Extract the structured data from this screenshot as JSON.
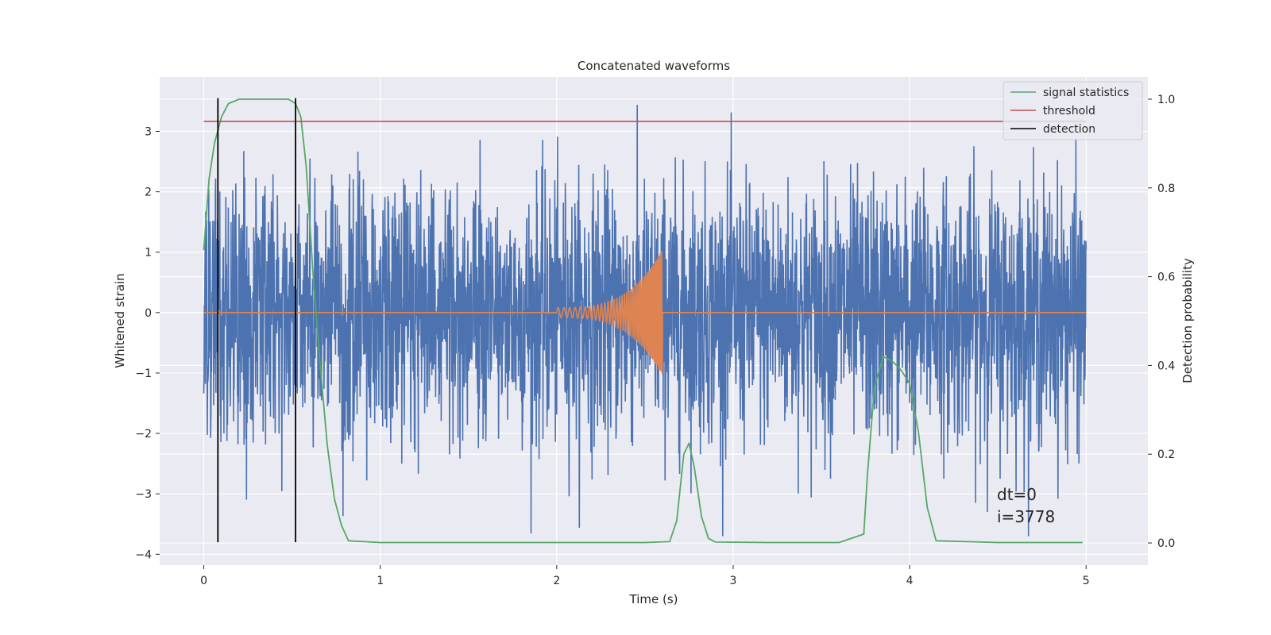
{
  "chart_data": {
    "type": "line",
    "title": "Concatenated waveforms",
    "xlabel": "Time (s)",
    "ylabel": "Whitened strain",
    "y2label": "Detection probability",
    "xlim": [
      -0.25,
      5.35
    ],
    "ylim": [
      -4.18,
      3.9
    ],
    "y2lim": [
      -0.05,
      1.05
    ],
    "x_ticks": [
      0,
      1,
      2,
      3,
      4,
      5
    ],
    "y_ticks": [
      -4,
      -3,
      -2,
      -1,
      0,
      1,
      2,
      3
    ],
    "y2_ticks": [
      0.0,
      0.2,
      0.4,
      0.6,
      0.8,
      1.0
    ],
    "x_tick_labels": [
      "0",
      "1",
      "2",
      "3",
      "4",
      "5"
    ],
    "y_tick_labels": [
      "−4",
      "−3",
      "−2",
      "−1",
      "0",
      "1",
      "2",
      "3"
    ],
    "y2_tick_labels": [
      "0.0",
      "0.2",
      "0.4",
      "0.6",
      "0.8",
      "1.0"
    ],
    "grid": true,
    "legend_position": "top-right",
    "colors": {
      "background": "#eaeaf2",
      "grid": "#ffffff",
      "noise": "#4c72b0",
      "chirp": "#dd8452",
      "signal_statistics": "#55a868",
      "threshold": "#c44e52",
      "detection": "#000000"
    },
    "series": [
      {
        "name": "signal statistics",
        "axis": "right",
        "x": [
          0.0,
          0.03,
          0.06,
          0.1,
          0.14,
          0.2,
          0.3,
          0.4,
          0.48,
          0.52,
          0.55,
          0.58,
          0.62,
          0.66,
          0.7,
          0.74,
          0.78,
          0.82,
          1.0,
          1.5,
          2.0,
          2.5,
          2.64,
          2.68,
          2.72,
          2.75,
          2.78,
          2.82,
          2.86,
          2.9,
          3.2,
          3.6,
          3.74,
          3.76,
          3.8,
          3.85,
          3.9,
          3.95,
          4.0,
          4.05,
          4.1,
          4.15,
          4.5,
          4.98
        ],
        "y": [
          0.66,
          0.82,
          0.9,
          0.96,
          0.99,
          1.0,
          1.0,
          1.0,
          1.0,
          0.99,
          0.96,
          0.85,
          0.6,
          0.4,
          0.22,
          0.1,
          0.04,
          0.005,
          0.001,
          0.001,
          0.001,
          0.001,
          0.003,
          0.05,
          0.2,
          0.225,
          0.17,
          0.06,
          0.01,
          0.002,
          0.001,
          0.001,
          0.02,
          0.15,
          0.35,
          0.42,
          0.41,
          0.39,
          0.36,
          0.25,
          0.08,
          0.005,
          0.001,
          0.001
        ]
      },
      {
        "name": "threshold",
        "axis": "right",
        "x": [
          0.0,
          5.0
        ],
        "y": [
          0.95,
          0.95
        ]
      },
      {
        "name": "detection",
        "axis": "left",
        "type": "vlines",
        "x": [
          0.08,
          0.52
        ],
        "y_range": [
          -3.8,
          3.55
        ]
      }
    ],
    "noise_trace": {
      "axis": "left",
      "x_range": [
        0,
        5
      ],
      "band": [
        -2.3,
        2.3
      ],
      "peak_range": [
        -3.7,
        3.55
      ]
    },
    "chirp_trace": {
      "axis": "left",
      "x_range": [
        2.0,
        2.6
      ],
      "peak_amplitude": 1.05
    },
    "annotations": [
      "dt=0",
      "i=3778"
    ]
  }
}
